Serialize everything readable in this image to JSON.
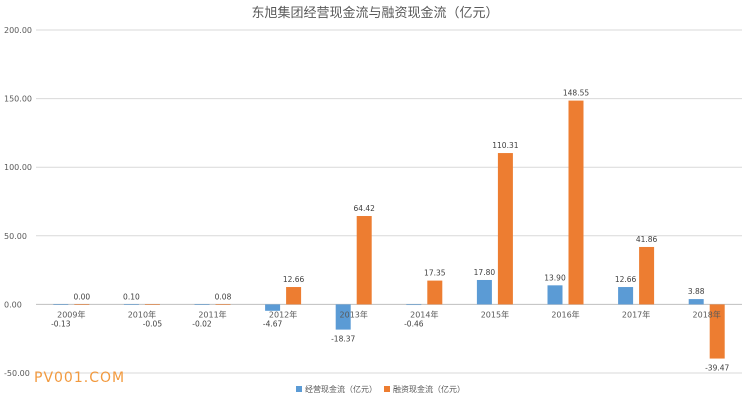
{
  "chart_data": {
    "type": "bar",
    "title": "东旭集团经营现金流与融资现金流（亿元）",
    "categories": [
      "2009年",
      "2010年",
      "2011年",
      "2012年",
      "2013年",
      "2014年",
      "2015年",
      "2016年",
      "2017年",
      "2018年"
    ],
    "series": [
      {
        "name": "经营现金流（亿元）",
        "values": [
          -0.13,
          0.1,
          -0.02,
          -4.67,
          -18.37,
          -0.46,
          17.8,
          13.9,
          12.66,
          3.88
        ],
        "labels": [
          "-0.13",
          "0.10",
          "-0.02",
          "-4.67",
          "-18.37",
          "-0.46",
          "17.80",
          "13.90",
          "12.66",
          "3.88"
        ],
        "color": "#5b9bd5"
      },
      {
        "name": "融资现金流（亿元）",
        "values": [
          0.0,
          -0.05,
          0.08,
          12.66,
          64.42,
          17.35,
          110.31,
          148.55,
          41.86,
          -39.47
        ],
        "labels": [
          "0.00",
          "-0.05",
          "0.08",
          "12.66",
          "64.42",
          "17.35",
          "110.31",
          "148.55",
          "41.86",
          "-39.47"
        ],
        "color": "#ed7d31"
      }
    ],
    "ylim": [
      -50,
      200
    ],
    "yticks": [
      "-50.00",
      "0.00",
      "50.00",
      "100.00",
      "150.00",
      "200.00"
    ],
    "ytick_values": [
      -50,
      0,
      50,
      100,
      150,
      200
    ],
    "grid": true,
    "legend_position": "bottom"
  },
  "watermark": "PV001.COM",
  "colors": {
    "grid": "#d9d9d9",
    "axis": "#bfbfbf"
  }
}
